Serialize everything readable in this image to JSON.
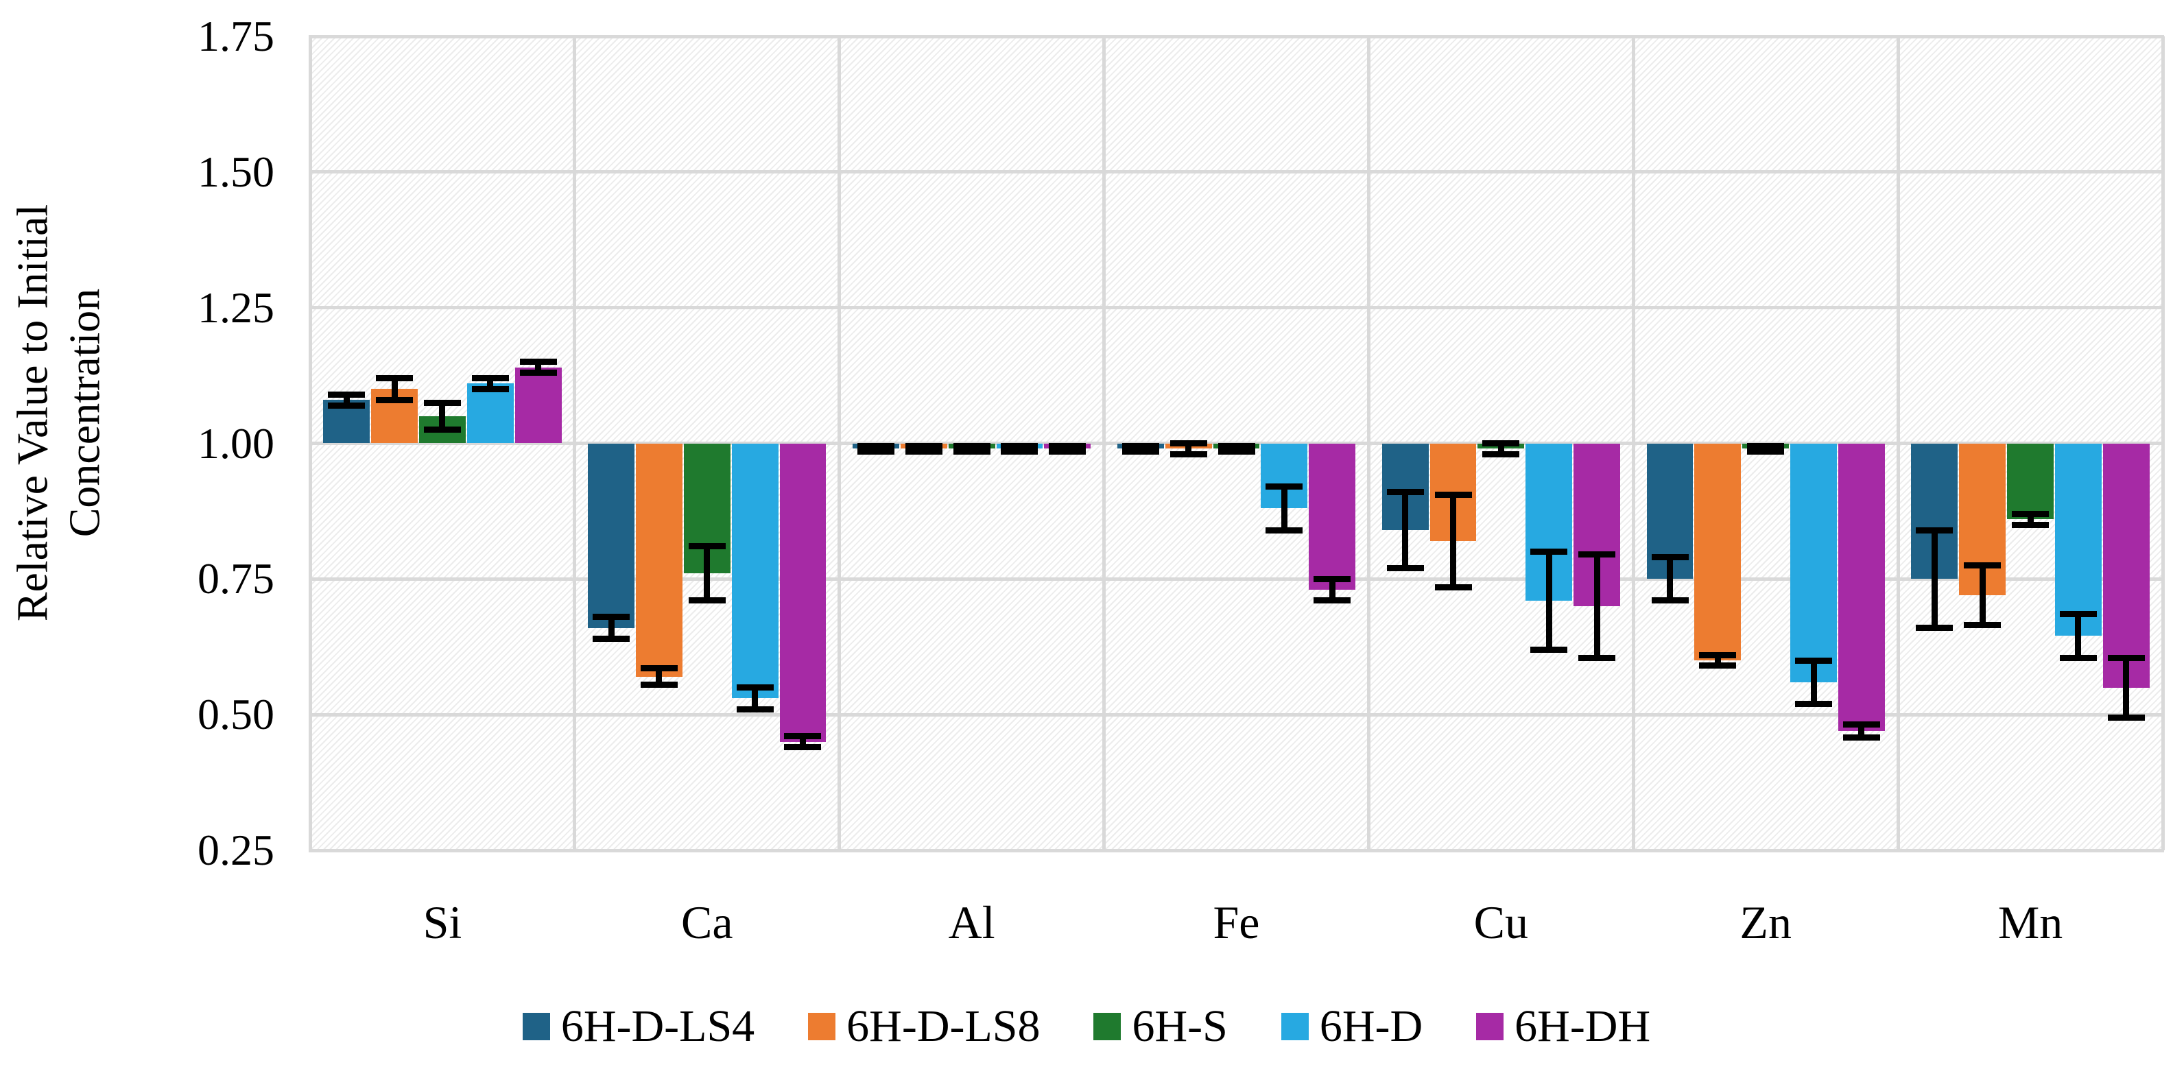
{
  "chart_data": {
    "type": "bar",
    "title": "",
    "ylabel_line1": "Relative Value to Initial",
    "ylabel_line2": "Concentration",
    "xlabel": "",
    "categories": [
      "Si",
      "Ca",
      "Al",
      "Fe",
      "Cu",
      "Zn",
      "Mn"
    ],
    "series": [
      {
        "name": "6H-D-LS4",
        "color": "#1F6287",
        "values": [
          1.08,
          0.66,
          0.99,
          0.99,
          0.84,
          0.75,
          0.75
        ],
        "errors": [
          0.01,
          0.02,
          0.005,
          0.005,
          0.07,
          0.04,
          0.09
        ]
      },
      {
        "name": "6H-D-LS8",
        "color": "#ED7C30",
        "values": [
          1.1,
          0.57,
          0.99,
          0.99,
          0.82,
          0.6,
          0.72
        ],
        "errors": [
          0.02,
          0.015,
          0.005,
          0.01,
          0.085,
          0.01,
          0.055
        ]
      },
      {
        "name": "6H-S",
        "color": "#1F7A2E",
        "values": [
          1.05,
          0.76,
          0.99,
          0.99,
          0.99,
          0.99,
          0.86
        ],
        "errors": [
          0.025,
          0.05,
          0.005,
          0.005,
          0.01,
          0.005,
          0.01
        ]
      },
      {
        "name": "6H-D",
        "color": "#27A9E1",
        "values": [
          1.11,
          0.53,
          0.99,
          0.88,
          0.71,
          0.56,
          0.645
        ],
        "errors": [
          0.01,
          0.02,
          0.005,
          0.04,
          0.09,
          0.04,
          0.04
        ]
      },
      {
        "name": "6H-DH",
        "color": "#A62AA5",
        "values": [
          1.14,
          0.45,
          0.99,
          0.73,
          0.7,
          0.47,
          0.55
        ],
        "errors": [
          0.01,
          0.01,
          0.005,
          0.02,
          0.095,
          0.012,
          0.055
        ]
      }
    ],
    "baseline": 1.0,
    "ylim": [
      0.25,
      1.75
    ],
    "yticks": [
      1.75,
      1.5,
      1.25,
      1.0,
      0.75,
      0.5,
      0.25
    ],
    "grid": true,
    "hatch_background": true,
    "legend_position": "bottom",
    "gridline_color": "#d9d9d9",
    "error_bar_color": "#000000"
  }
}
